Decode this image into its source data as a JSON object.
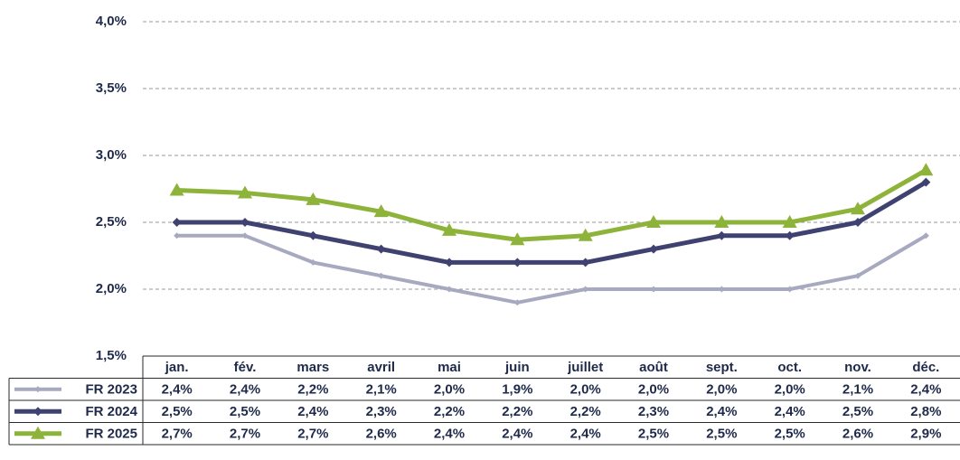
{
  "chart_data": {
    "type": "line",
    "categories": [
      "jan.",
      "fév.",
      "mars",
      "avril",
      "mai",
      "juin",
      "juillet",
      "août",
      "sept.",
      "oct.",
      "nov.",
      "déc."
    ],
    "series": [
      {
        "name": "FR 2023",
        "color": "#a7a9c0",
        "marker": "small-diamond",
        "values": [
          2.4,
          2.4,
          2.2,
          2.1,
          2.0,
          1.9,
          2.0,
          2.0,
          2.0,
          2.0,
          2.1,
          2.4
        ],
        "value_labels": [
          "2,4%",
          "2,4%",
          "2,2%",
          "2,1%",
          "2,0%",
          "1,9%",
          "2,0%",
          "2,0%",
          "2,0%",
          "2,0%",
          "2,1%",
          "2,4%"
        ]
      },
      {
        "name": "FR 2024",
        "color": "#3f4270",
        "marker": "diamond",
        "values": [
          2.5,
          2.5,
          2.4,
          2.3,
          2.2,
          2.2,
          2.2,
          2.3,
          2.4,
          2.4,
          2.5,
          2.8
        ],
        "value_labels": [
          "2,5%",
          "2,5%",
          "2,4%",
          "2,3%",
          "2,2%",
          "2,2%",
          "2,2%",
          "2,3%",
          "2,4%",
          "2,4%",
          "2,5%",
          "2,8%"
        ]
      },
      {
        "name": "FR 2025",
        "color": "#8db33a",
        "marker": "triangle",
        "values": [
          2.74,
          2.72,
          2.67,
          2.58,
          2.44,
          2.37,
          2.4,
          2.5,
          2.5,
          2.5,
          2.6,
          2.89
        ],
        "value_labels": [
          "2,7%",
          "2,7%",
          "2,7%",
          "2,6%",
          "2,4%",
          "2,4%",
          "2,4%",
          "2,5%",
          "2,5%",
          "2,5%",
          "2,6%",
          "2,9%"
        ]
      }
    ],
    "ylim": [
      1.5,
      4.0
    ],
    "yticks": [
      {
        "value": 1.5,
        "label": "1,5%"
      },
      {
        "value": 2.0,
        "label": "2,0%"
      },
      {
        "value": 2.5,
        "label": "2,5%"
      },
      {
        "value": 3.0,
        "label": "3,0%"
      },
      {
        "value": 3.5,
        "label": "3,5%"
      },
      {
        "value": 4.0,
        "label": "4,0%"
      }
    ],
    "grid": true
  }
}
